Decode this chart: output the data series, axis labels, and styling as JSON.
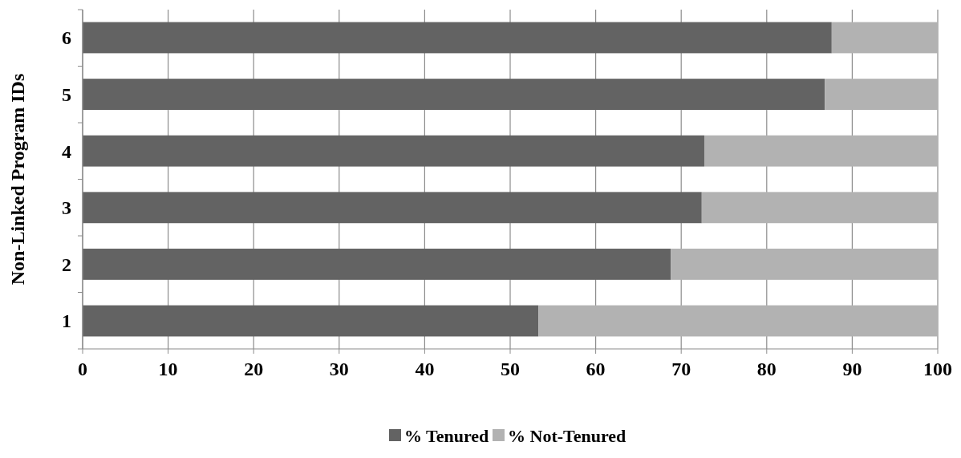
{
  "chart_data": {
    "type": "bar",
    "orientation": "horizontal",
    "stacked": true,
    "ylabel": "Non-Linked Program IDs",
    "categories": [
      "6",
      "5",
      "4",
      "3",
      "2",
      "1"
    ],
    "series": [
      {
        "name": "% Tenured",
        "color": "#636363",
        "values": [
          87.6,
          86.8,
          72.7,
          72.4,
          68.8,
          53.3
        ]
      },
      {
        "name": "% Not-Tenured",
        "color": "#b2b2b2",
        "values": [
          12.4,
          13.2,
          27.3,
          27.6,
          31.2,
          46.7
        ]
      }
    ],
    "xlim": [
      0,
      100
    ],
    "xticks": [
      0,
      10,
      20,
      30,
      40,
      50,
      60,
      70,
      80,
      90,
      100
    ],
    "grid": "x",
    "legend": "bottom"
  }
}
